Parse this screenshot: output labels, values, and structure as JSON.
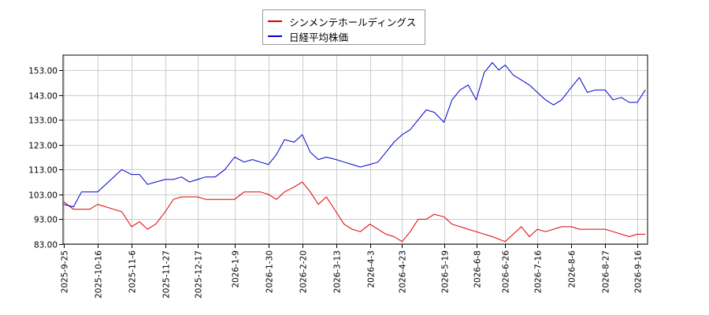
{
  "chart_data": {
    "type": "line",
    "title": "",
    "xlabel": "",
    "ylabel": "",
    "ylim": [
      83,
      159
    ],
    "yticks": [
      83,
      93,
      103,
      113,
      123,
      133,
      143,
      153
    ],
    "ytick_labels": [
      "83.00",
      "93.00",
      "103.00",
      "113.00",
      "123.00",
      "133.00",
      "143.00",
      "153.00"
    ],
    "xticks": [
      "2025-9-25",
      "2025-10-16",
      "2025-11-6",
      "2025-11-27",
      "2025-12-17",
      "2026-1-9",
      "2026-1-30",
      "2026-2-20",
      "2026-3-13",
      "2026-4-3",
      "2026-4-23",
      "2026-5-19",
      "2026-6-8",
      "2026-6-26",
      "2026-7-16",
      "2026-8-6",
      "2026-8-27",
      "2026-9-16"
    ],
    "grid": true,
    "legend_position": "top-center",
    "series": [
      {
        "name": "シンメンテホールディングス",
        "color": "#dd0000",
        "points": [
          [
            "2025-9-25",
            100
          ],
          [
            "2025-10-1",
            97
          ],
          [
            "2025-10-6",
            97
          ],
          [
            "2025-10-11",
            97
          ],
          [
            "2025-10-16",
            99
          ],
          [
            "2025-10-21",
            98
          ],
          [
            "2025-10-26",
            97
          ],
          [
            "2025-10-31",
            96
          ],
          [
            "2025-11-6",
            90
          ],
          [
            "2025-11-11",
            92
          ],
          [
            "2025-11-16",
            89
          ],
          [
            "2025-11-21",
            91
          ],
          [
            "2025-11-27",
            96
          ],
          [
            "2025-12-2",
            101
          ],
          [
            "2025-12-7",
            102
          ],
          [
            "2025-12-12",
            102
          ],
          [
            "2025-12-17",
            102
          ],
          [
            "2025-12-22",
            101
          ],
          [
            "2025-12-28",
            101
          ],
          [
            "2026-1-3",
            101
          ],
          [
            "2026-1-9",
            101
          ],
          [
            "2026-1-15",
            104
          ],
          [
            "2026-1-20",
            104
          ],
          [
            "2026-1-25",
            104
          ],
          [
            "2026-1-30",
            103
          ],
          [
            "2026-2-4",
            101
          ],
          [
            "2026-2-9",
            104
          ],
          [
            "2026-2-15",
            106
          ],
          [
            "2026-2-20",
            108
          ],
          [
            "2026-2-25",
            104
          ],
          [
            "2026-3-2",
            99
          ],
          [
            "2026-3-7",
            102
          ],
          [
            "2026-3-13",
            96
          ],
          [
            "2026-3-18",
            91
          ],
          [
            "2026-3-23",
            89
          ],
          [
            "2026-3-28",
            88
          ],
          [
            "2026-4-3",
            91
          ],
          [
            "2026-4-8",
            89
          ],
          [
            "2026-4-13",
            87
          ],
          [
            "2026-4-18",
            86
          ],
          [
            "2026-4-23",
            84
          ],
          [
            "2026-4-28",
            88
          ],
          [
            "2026-5-3",
            93
          ],
          [
            "2026-5-8",
            93
          ],
          [
            "2026-5-13",
            95
          ],
          [
            "2026-5-19",
            94
          ],
          [
            "2026-5-24",
            91
          ],
          [
            "2026-5-29",
            90
          ],
          [
            "2026-6-3",
            89
          ],
          [
            "2026-6-8",
            88
          ],
          [
            "2026-6-13",
            87
          ],
          [
            "2026-6-18",
            86
          ],
          [
            "2026-6-22",
            85
          ],
          [
            "2026-6-26",
            84
          ],
          [
            "2026-7-1",
            87
          ],
          [
            "2026-7-6",
            90
          ],
          [
            "2026-7-11",
            86
          ],
          [
            "2026-7-16",
            89
          ],
          [
            "2026-7-21",
            88
          ],
          [
            "2026-7-26",
            89
          ],
          [
            "2026-7-31",
            90
          ],
          [
            "2026-8-6",
            90
          ],
          [
            "2026-8-11",
            89
          ],
          [
            "2026-8-16",
            89
          ],
          [
            "2026-8-21",
            89
          ],
          [
            "2026-8-27",
            89
          ],
          [
            "2026-9-1",
            88
          ],
          [
            "2026-9-6",
            87
          ],
          [
            "2026-9-11",
            86
          ],
          [
            "2026-9-16",
            87
          ],
          [
            "2026-9-21",
            87
          ]
        ]
      },
      {
        "name": "日経平均株価",
        "color": "#0000cc",
        "points": [
          [
            "2025-9-25",
            99
          ],
          [
            "2025-10-1",
            98
          ],
          [
            "2025-10-6",
            104
          ],
          [
            "2025-10-11",
            104
          ],
          [
            "2025-10-16",
            104
          ],
          [
            "2025-10-21",
            107
          ],
          [
            "2025-10-26",
            110
          ],
          [
            "2025-10-31",
            113
          ],
          [
            "2025-11-6",
            111
          ],
          [
            "2025-11-11",
            111
          ],
          [
            "2025-11-16",
            107
          ],
          [
            "2025-11-21",
            108
          ],
          [
            "2025-11-27",
            109
          ],
          [
            "2025-12-2",
            109
          ],
          [
            "2025-12-7",
            110
          ],
          [
            "2025-12-12",
            108
          ],
          [
            "2025-12-17",
            109
          ],
          [
            "2025-12-22",
            110
          ],
          [
            "2025-12-28",
            110
          ],
          [
            "2026-1-3",
            113
          ],
          [
            "2026-1-9",
            118
          ],
          [
            "2026-1-15",
            116
          ],
          [
            "2026-1-20",
            117
          ],
          [
            "2026-1-25",
            116
          ],
          [
            "2026-1-30",
            115
          ],
          [
            "2026-2-4",
            119
          ],
          [
            "2026-2-9",
            125
          ],
          [
            "2026-2-15",
            124
          ],
          [
            "2026-2-20",
            127
          ],
          [
            "2026-2-25",
            120
          ],
          [
            "2026-3-2",
            117
          ],
          [
            "2026-3-7",
            118
          ],
          [
            "2026-3-13",
            117
          ],
          [
            "2026-3-18",
            116
          ],
          [
            "2026-3-23",
            115
          ],
          [
            "2026-3-28",
            114
          ],
          [
            "2026-4-3",
            115
          ],
          [
            "2026-4-8",
            116
          ],
          [
            "2026-4-13",
            120
          ],
          [
            "2026-4-18",
            124
          ],
          [
            "2026-4-23",
            127
          ],
          [
            "2026-4-28",
            129
          ],
          [
            "2026-5-3",
            133
          ],
          [
            "2026-5-8",
            137
          ],
          [
            "2026-5-13",
            136
          ],
          [
            "2026-5-19",
            132
          ],
          [
            "2026-5-24",
            141
          ],
          [
            "2026-5-29",
            145
          ],
          [
            "2026-6-3",
            147
          ],
          [
            "2026-6-8",
            141
          ],
          [
            "2026-6-13",
            152
          ],
          [
            "2026-6-18",
            156
          ],
          [
            "2026-6-22",
            153
          ],
          [
            "2026-6-26",
            155
          ],
          [
            "2026-7-1",
            151
          ],
          [
            "2026-7-6",
            149
          ],
          [
            "2026-7-11",
            147
          ],
          [
            "2026-7-16",
            144
          ],
          [
            "2026-7-21",
            141
          ],
          [
            "2026-7-26",
            139
          ],
          [
            "2026-7-31",
            141
          ],
          [
            "2026-8-6",
            146
          ],
          [
            "2026-8-11",
            150
          ],
          [
            "2026-8-16",
            144
          ],
          [
            "2026-8-21",
            145
          ],
          [
            "2026-8-27",
            145
          ],
          [
            "2026-9-1",
            141
          ],
          [
            "2026-9-6",
            142
          ],
          [
            "2026-9-11",
            140
          ],
          [
            "2026-9-16",
            140
          ],
          [
            "2026-9-21",
            145
          ]
        ]
      }
    ]
  }
}
